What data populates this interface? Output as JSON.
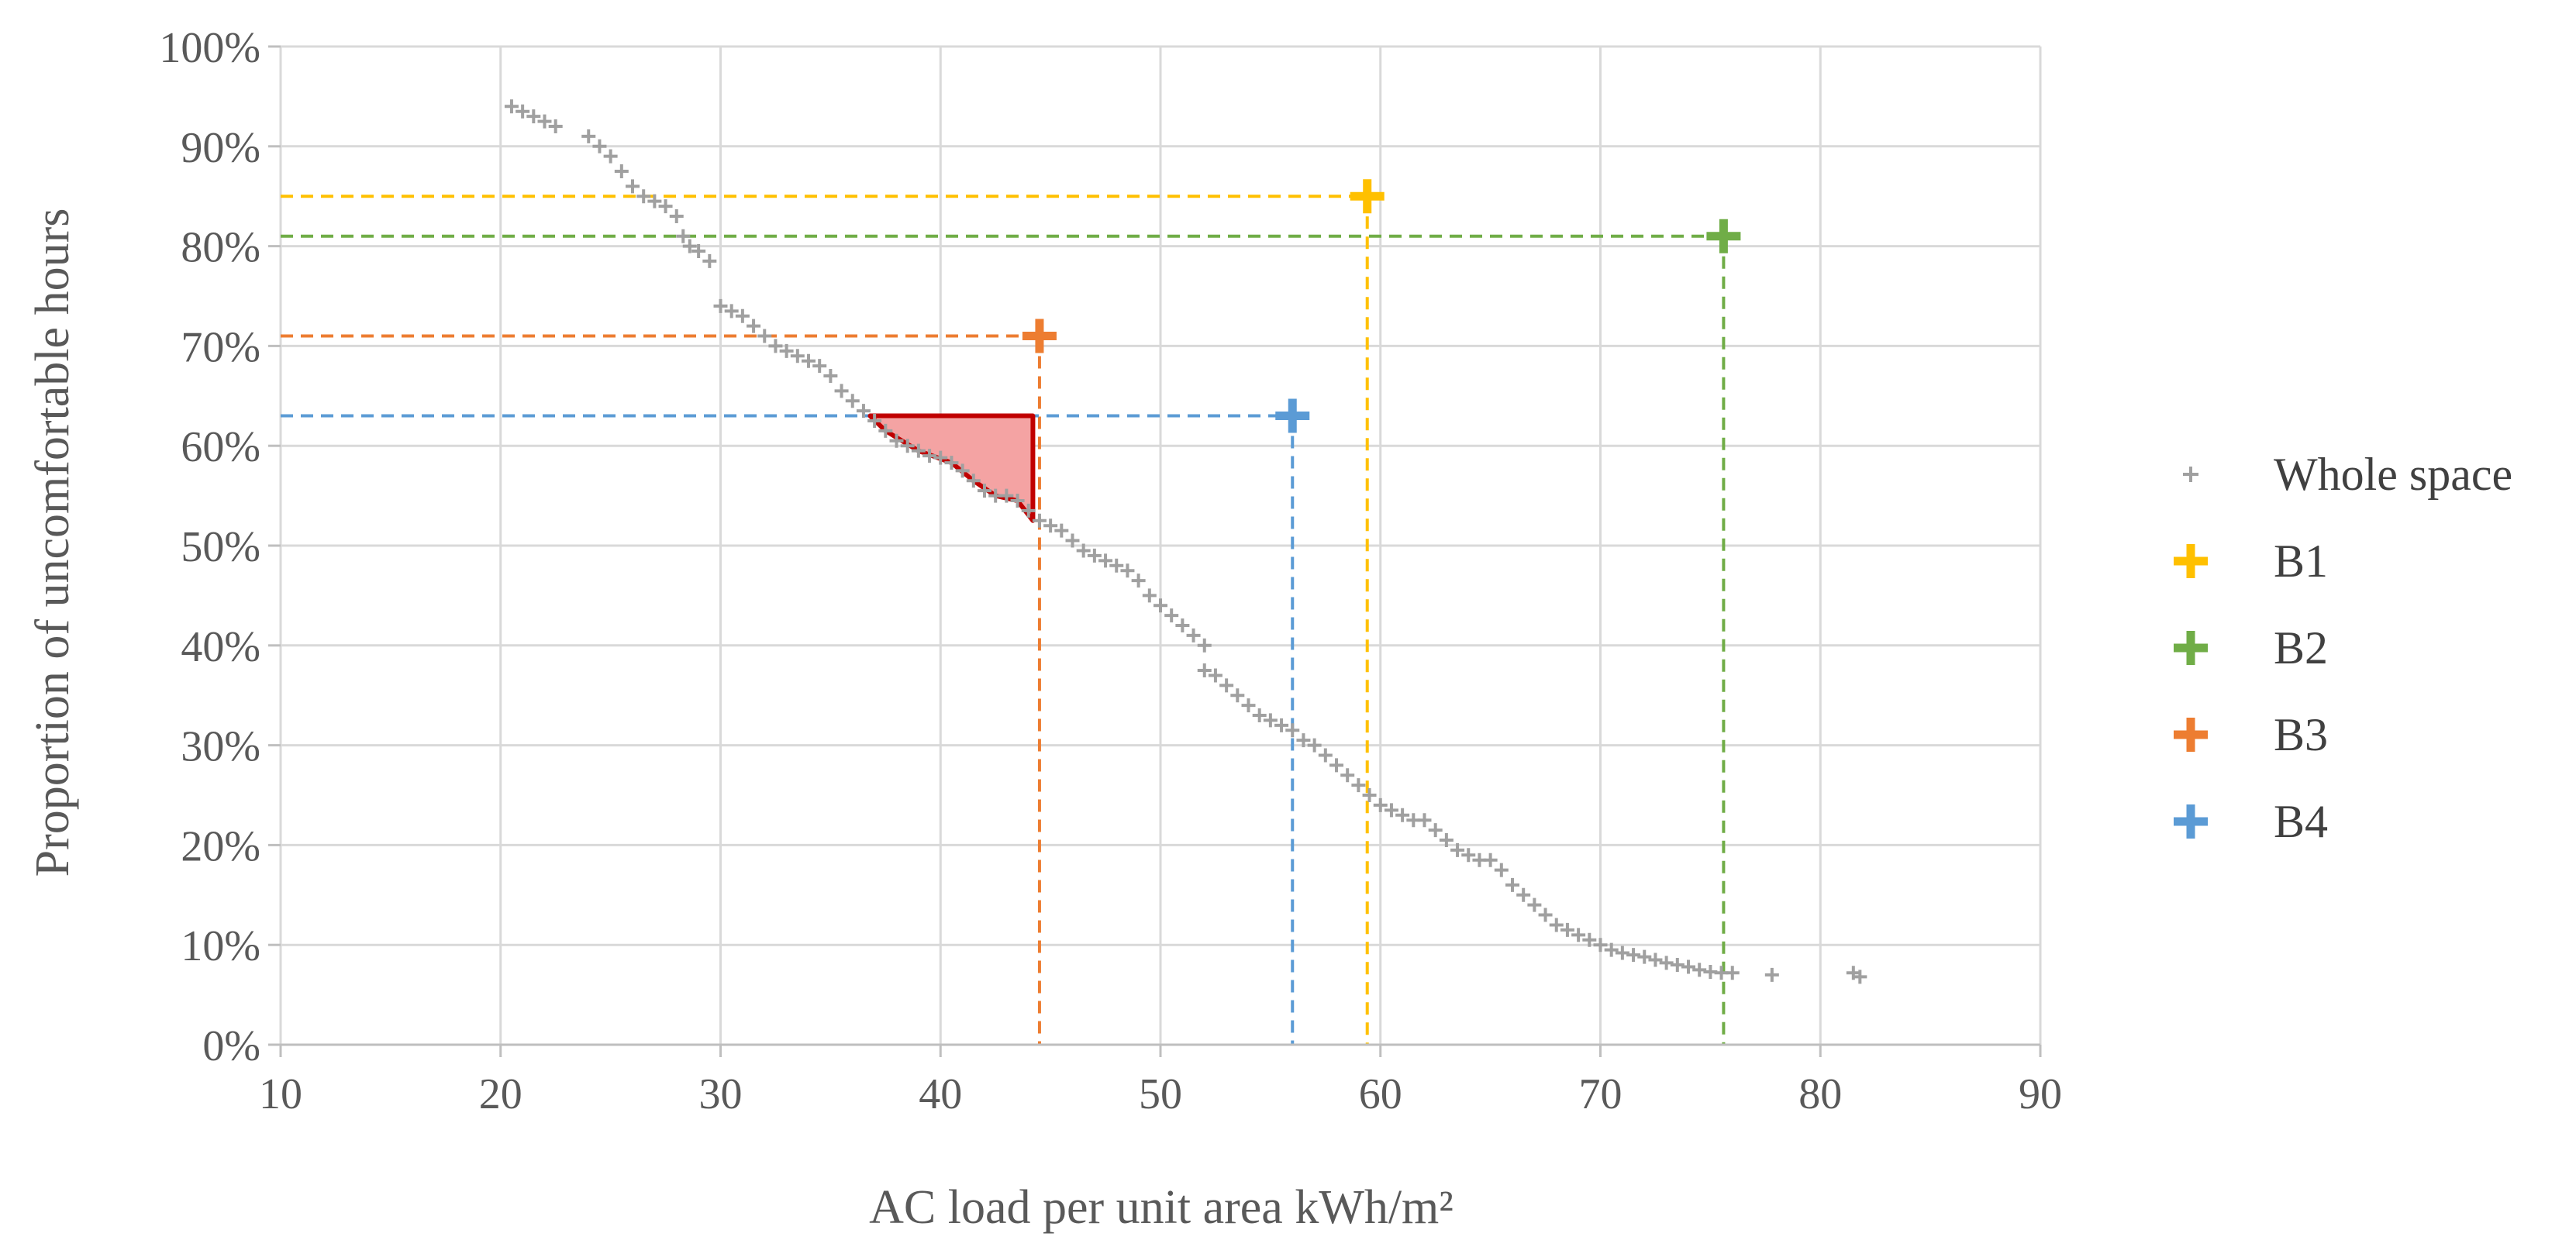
{
  "chart_data": {
    "type": "scatter",
    "xlabel": "AC load per unit area kWh/m²",
    "ylabel": "Proportion of uncomfortable hours",
    "xlim": [
      10,
      90
    ],
    "ylim": [
      0,
      100
    ],
    "x_ticks": [
      "10",
      "20",
      "30",
      "40",
      "50",
      "60",
      "70",
      "80",
      "90"
    ],
    "y_ticks": [
      "0%",
      "10%",
      "20%",
      "30%",
      "40%",
      "50%",
      "60%",
      "70%",
      "80%",
      "90%",
      "100%"
    ],
    "grid": true,
    "legend_position": "right",
    "series": [
      {
        "name": "Whole space",
        "color": "#a0a0a0",
        "marker": "small-plus",
        "points": [
          [
            20.5,
            94
          ],
          [
            21,
            93.5
          ],
          [
            21.5,
            93
          ],
          [
            22,
            92.5
          ],
          [
            22.5,
            92
          ],
          [
            24,
            91
          ],
          [
            24.5,
            90
          ],
          [
            25,
            89
          ],
          [
            25.5,
            87.5
          ],
          [
            26,
            86
          ],
          [
            26.5,
            85
          ],
          [
            27,
            84.5
          ],
          [
            27.5,
            84
          ],
          [
            28,
            83
          ],
          [
            28.3,
            81
          ],
          [
            28.6,
            80
          ],
          [
            29,
            79.5
          ],
          [
            29.5,
            78.5
          ],
          [
            30,
            74
          ],
          [
            30.5,
            73.5
          ],
          [
            31,
            73
          ],
          [
            31.5,
            72
          ],
          [
            32,
            71
          ],
          [
            32.5,
            70
          ],
          [
            33,
            69.5
          ],
          [
            33.5,
            69
          ],
          [
            34,
            68.5
          ],
          [
            34.5,
            68
          ],
          [
            35,
            67
          ],
          [
            35.5,
            65.5
          ],
          [
            36,
            64.5
          ],
          [
            36.5,
            63.5
          ],
          [
            37,
            62.5
          ],
          [
            37.5,
            61.5
          ],
          [
            38,
            60.5
          ],
          [
            38.5,
            60
          ],
          [
            39,
            59.5
          ],
          [
            39.5,
            59
          ],
          [
            40,
            58.8
          ],
          [
            40.5,
            58.3
          ],
          [
            41,
            57.5
          ],
          [
            41.5,
            56.5
          ],
          [
            42,
            55.5
          ],
          [
            42.5,
            55
          ],
          [
            43,
            55
          ],
          [
            43.5,
            54.5
          ],
          [
            44,
            53.5
          ],
          [
            44.5,
            52.5
          ],
          [
            45,
            52
          ],
          [
            45.5,
            51.5
          ],
          [
            46,
            50.5
          ],
          [
            46.5,
            49.5
          ],
          [
            47,
            49
          ],
          [
            47.5,
            48.5
          ],
          [
            48,
            48
          ],
          [
            48.5,
            47.5
          ],
          [
            49,
            46.5
          ],
          [
            49.5,
            45
          ],
          [
            50,
            44
          ],
          [
            50.5,
            43
          ],
          [
            51,
            42
          ],
          [
            51.5,
            41
          ],
          [
            52,
            40
          ],
          [
            52,
            37.5
          ],
          [
            52.5,
            37
          ],
          [
            53,
            36
          ],
          [
            53.5,
            35
          ],
          [
            54,
            34
          ],
          [
            54.5,
            33
          ],
          [
            55,
            32.5
          ],
          [
            55.5,
            32
          ],
          [
            56,
            31.5
          ],
          [
            56.5,
            30.5
          ],
          [
            57,
            30
          ],
          [
            57.5,
            29
          ],
          [
            58,
            28
          ],
          [
            58.5,
            27
          ],
          [
            59,
            26
          ],
          [
            59.5,
            25
          ],
          [
            60,
            24
          ],
          [
            60.5,
            23.5
          ],
          [
            61,
            23
          ],
          [
            61.5,
            22.5
          ],
          [
            62,
            22.5
          ],
          [
            62.5,
            21.5
          ],
          [
            63,
            20.5
          ],
          [
            63.5,
            19.5
          ],
          [
            64,
            19
          ],
          [
            64.5,
            18.5
          ],
          [
            65,
            18.5
          ],
          [
            65.5,
            17.5
          ],
          [
            66,
            16
          ],
          [
            66.5,
            15
          ],
          [
            67,
            14
          ],
          [
            67.5,
            13
          ],
          [
            68,
            12
          ],
          [
            68.5,
            11.5
          ],
          [
            69,
            11
          ],
          [
            69.5,
            10.5
          ],
          [
            70,
            10
          ],
          [
            70.5,
            9.5
          ],
          [
            71,
            9.2
          ],
          [
            71.5,
            9
          ],
          [
            72,
            8.8
          ],
          [
            72.5,
            8.5
          ],
          [
            73,
            8.2
          ],
          [
            73.5,
            8
          ],
          [
            74,
            7.8
          ],
          [
            74.5,
            7.5
          ],
          [
            75,
            7.3
          ],
          [
            75.5,
            7.2
          ],
          [
            76,
            7.2
          ],
          [
            77.8,
            7
          ],
          [
            81.5,
            7.2
          ],
          [
            81.8,
            6.8
          ]
        ]
      },
      {
        "name": "B1",
        "color": "#ffc000",
        "marker": "bold-plus",
        "x": 59.4,
        "y": 85
      },
      {
        "name": "B2",
        "color": "#70ad47",
        "marker": "bold-plus",
        "x": 75.6,
        "y": 81
      },
      {
        "name": "B3",
        "color": "#ed7d31",
        "marker": "bold-plus",
        "x": 44.5,
        "y": 71
      },
      {
        "name": "B4",
        "color": "#5b9bd5",
        "marker": "bold-plus",
        "x": 56.0,
        "y": 63
      }
    ],
    "annotations": [
      {
        "type": "shaded-region",
        "fill": "#f4a3a3",
        "stroke": "#c00000",
        "points": [
          [
            36.8,
            63
          ],
          [
            44.2,
            63
          ],
          [
            44.2,
            52.5
          ],
          [
            43.5,
            54.5
          ],
          [
            42.5,
            55
          ],
          [
            41.5,
            56.5
          ],
          [
            40.5,
            58.3
          ],
          [
            39,
            59.5
          ],
          [
            37.5,
            61.5
          ]
        ]
      }
    ]
  }
}
